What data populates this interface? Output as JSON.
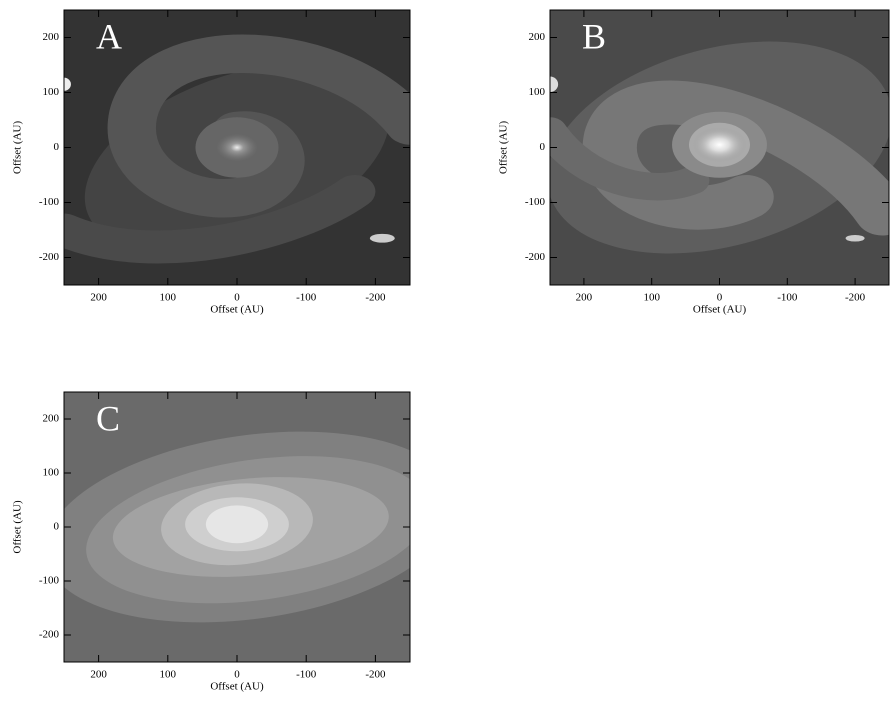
{
  "chart_data": [
    {
      "type": "image",
      "label": "A",
      "xlabel": "Offset (AU)",
      "ylabel": "Offset (AU)",
      "xlim": [
        250,
        -250
      ],
      "ylim": [
        -250,
        250
      ],
      "xticks": [
        200,
        100,
        0,
        -100,
        -200
      ],
      "yticks": [
        200,
        100,
        0,
        -100,
        -200
      ]
    },
    {
      "type": "image",
      "label": "B",
      "xlabel": "Offset (AU)",
      "ylabel": "Offset (AU)",
      "xlim": [
        250,
        -250
      ],
      "ylim": [
        -250,
        250
      ],
      "xticks": [
        200,
        100,
        0,
        -100,
        -200
      ],
      "yticks": [
        200,
        100,
        0,
        -100,
        -200
      ]
    },
    {
      "type": "image",
      "label": "C",
      "xlabel": "Offset (AU)",
      "ylabel": "Offset (AU)",
      "xlim": [
        250,
        -250
      ],
      "ylim": [
        -250,
        250
      ],
      "xticks": [
        200,
        100,
        0,
        -100,
        -200
      ],
      "yticks": [
        200,
        100,
        0,
        -100,
        -200
      ]
    }
  ]
}
